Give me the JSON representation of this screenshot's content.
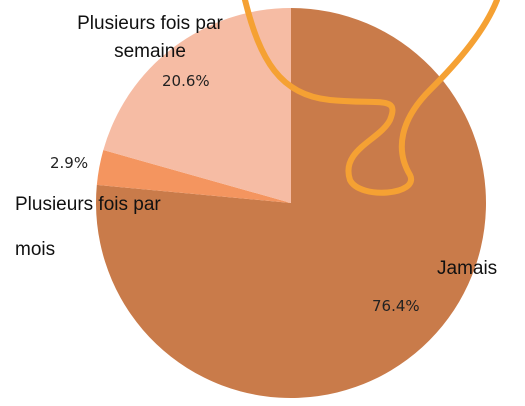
{
  "chart_data": {
    "type": "pie",
    "categories": [
      "Jamais",
      "Plusieurs fois par mois",
      "Plusieurs fois par semaine"
    ],
    "values": [
      76.4,
      2.9,
      20.6
    ],
    "value_labels": [
      "76.4%",
      "2.9%",
      "20.6%"
    ],
    "colors": [
      "#c97b4a",
      "#f4955f",
      "#f6bca4"
    ]
  }
}
